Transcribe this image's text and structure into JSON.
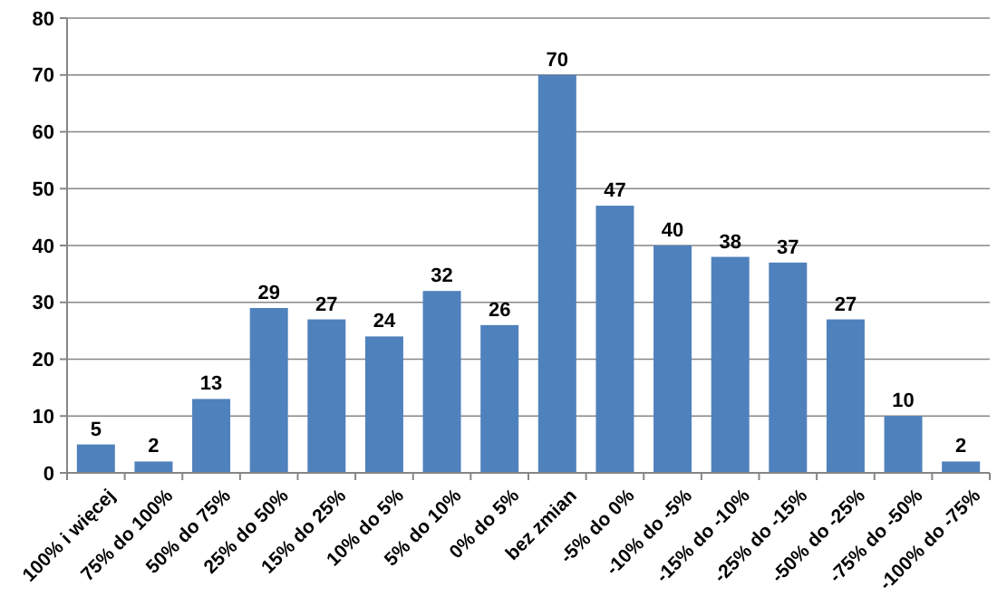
{
  "chart_data": {
    "type": "bar",
    "categories": [
      "100% i więcej",
      "75% do 100%",
      "50% do 75%",
      "25% do 50%",
      "15% do 25%",
      "10% do 5%",
      "5% do 10%",
      "0% do 5%",
      "bez zmian",
      "-5% do 0%",
      "-10% do -5%",
      "-15% do -10%",
      "-25% do -15%",
      "-50% do -25%",
      "-75% do -50%",
      "-100% do -75%"
    ],
    "values": [
      5,
      2,
      13,
      29,
      27,
      24,
      32,
      26,
      70,
      47,
      40,
      38,
      37,
      27,
      10,
      2
    ],
    "color": "#4f81bd",
    "ylim": [
      0,
      80
    ],
    "yticks": [
      0,
      10,
      20,
      30,
      40,
      50,
      60,
      70,
      80
    ],
    "grid": "y",
    "data_labels": true
  }
}
